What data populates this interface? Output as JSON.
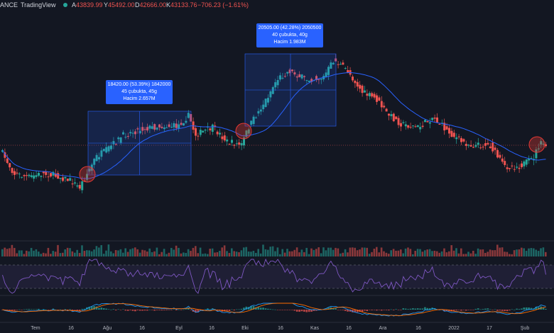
{
  "header": {
    "exchange": "ANCE",
    "brand": "TradingView",
    "ohlc": [
      {
        "key": "A",
        "value": "43839.99"
      },
      {
        "key": "Y",
        "value": "45492.00"
      },
      {
        "key": "D",
        "value": "42666.00"
      },
      {
        "key": "K",
        "value": "43133.76"
      },
      {
        "key": "",
        "value": "−706.23 (−1.61%)"
      }
    ]
  },
  "annotations": [
    {
      "lines": [
        "18420.00 (53.39%) 1842000",
        "45 çubukta, 45g",
        "Hacim 2.657M"
      ]
    },
    {
      "lines": [
        "20505.00 (42.28%) 2050500",
        "40 çubukta, 40g",
        "Hacim 1.983M"
      ]
    }
  ],
  "x_axis_labels": [
    "Tem",
    "16",
    "Ağu",
    "16",
    "Eyl",
    "16",
    "Eki",
    "16",
    "Kas",
    "16",
    "Ara",
    "16",
    "2022",
    "17",
    "Şub"
  ],
  "colors": {
    "up": "#26a69a",
    "down": "#ef5350",
    "ma": "#2962ff",
    "rsi": "#7e57c2",
    "macd": "#2196f3",
    "signal": "#ff6d00",
    "highlight": "#e53935",
    "measure_box": "#2962ff"
  }
}
